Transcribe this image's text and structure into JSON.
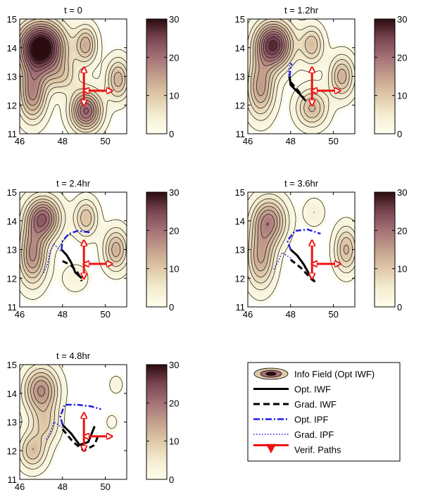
{
  "chart_data": {
    "type": "contour",
    "xlim": [
      46,
      51
    ],
    "ylim": [
      11,
      15
    ],
    "xticks": [
      "46",
      "48",
      "50"
    ],
    "yticks": [
      "11",
      "12",
      "13",
      "14",
      "15"
    ],
    "colorbar": {
      "range": [
        0,
        30
      ],
      "ticks": [
        "0",
        "10",
        "20",
        "30"
      ]
    },
    "panels": [
      {
        "title": "t = 0",
        "peaks": [
          {
            "x": 47.0,
            "y": 14.0,
            "amp": 34,
            "sx": 0.75,
            "sy": 0.62
          },
          {
            "x": 46.6,
            "y": 12.4,
            "amp": 17,
            "sx": 0.45,
            "sy": 0.65
          },
          {
            "x": 49.1,
            "y": 11.8,
            "amp": 22,
            "sx": 0.5,
            "sy": 0.48
          },
          {
            "x": 49.1,
            "y": 14.1,
            "amp": 13,
            "sx": 0.35,
            "sy": 0.45
          },
          {
            "x": 50.6,
            "y": 12.9,
            "amp": 13,
            "sx": 0.38,
            "sy": 0.5
          },
          {
            "x": 48.0,
            "y": 13.0,
            "amp": 7,
            "sx": 0.5,
            "sy": 0.4
          }
        ],
        "opt_iwf": [],
        "grad_iwf": [],
        "opt_ipf": [],
        "grad_ipf": []
      },
      {
        "title": "t = 1.2hr",
        "peaks": [
          {
            "x": 47.2,
            "y": 14.1,
            "amp": 27,
            "sx": 0.6,
            "sy": 0.55
          },
          {
            "x": 46.6,
            "y": 12.6,
            "amp": 15,
            "sx": 0.45,
            "sy": 0.7
          },
          {
            "x": 49.0,
            "y": 11.9,
            "amp": 12,
            "sx": 0.5,
            "sy": 0.45
          },
          {
            "x": 49.0,
            "y": 14.1,
            "amp": 11,
            "sx": 0.38,
            "sy": 0.45
          },
          {
            "x": 50.4,
            "y": 13.0,
            "amp": 13,
            "sx": 0.4,
            "sy": 0.5
          }
        ],
        "opt_iwf": [
          [
            47.95,
            13.0
          ],
          [
            48.0,
            12.7
          ],
          [
            48.4,
            12.4
          ],
          [
            48.7,
            12.15
          ]
        ],
        "grad_iwf": [
          [
            48.0,
            12.8
          ],
          [
            48.3,
            12.55
          ],
          [
            48.6,
            12.25
          ]
        ],
        "opt_ipf": [
          [
            47.95,
            13.0
          ],
          [
            48.0,
            13.3
          ],
          [
            48.05,
            13.45
          ]
        ],
        "grad_ipf": [
          [
            47.9,
            12.95
          ],
          [
            47.92,
            13.25
          ],
          [
            48.0,
            13.5
          ]
        ]
      },
      {
        "title": "t = 2.4hr",
        "peaks": [
          {
            "x": 47.1,
            "y": 14.1,
            "amp": 21,
            "sx": 0.55,
            "sy": 0.5
          },
          {
            "x": 46.6,
            "y": 12.8,
            "amp": 17,
            "sx": 0.45,
            "sy": 0.7
          },
          {
            "x": 49.1,
            "y": 14.1,
            "amp": 11,
            "sx": 0.38,
            "sy": 0.45
          },
          {
            "x": 50.5,
            "y": 13.0,
            "amp": 13,
            "sx": 0.4,
            "sy": 0.5
          },
          {
            "x": 48.6,
            "y": 12.0,
            "amp": 3,
            "sx": 0.5,
            "sy": 0.4
          }
        ],
        "opt_iwf": [
          [
            47.95,
            13.0
          ],
          [
            48.2,
            12.8
          ],
          [
            48.4,
            12.55
          ],
          [
            48.6,
            12.2
          ],
          [
            48.9,
            12.0
          ]
        ],
        "grad_iwf": [
          [
            48.0,
            12.6
          ],
          [
            48.4,
            12.45
          ],
          [
            48.7,
            12.2
          ],
          [
            48.9,
            11.9
          ]
        ],
        "opt_ipf": [
          [
            47.95,
            13.0
          ],
          [
            48.0,
            13.3
          ],
          [
            48.3,
            13.55
          ],
          [
            48.7,
            13.65
          ],
          [
            49.3,
            13.6
          ]
        ],
        "grad_ipf": [
          [
            47.9,
            12.95
          ],
          [
            47.6,
            13.2
          ],
          [
            47.4,
            12.9
          ],
          [
            47.3,
            12.5
          ],
          [
            47.1,
            12.15
          ]
        ]
      },
      {
        "title": "t = 3.6hr",
        "peaks": [
          {
            "x": 47.0,
            "y": 14.0,
            "amp": 17,
            "sx": 0.55,
            "sy": 0.55
          },
          {
            "x": 46.6,
            "y": 12.7,
            "amp": 14,
            "sx": 0.45,
            "sy": 0.7
          },
          {
            "x": 50.6,
            "y": 13.0,
            "amp": 12,
            "sx": 0.38,
            "sy": 0.55
          },
          {
            "x": 49.1,
            "y": 14.3,
            "amp": 4,
            "sx": 0.35,
            "sy": 0.35
          }
        ],
        "opt_iwf": [
          [
            48.0,
            13.0
          ],
          [
            48.3,
            12.8
          ],
          [
            48.6,
            12.5
          ],
          [
            48.9,
            12.1
          ],
          [
            49.1,
            11.9
          ]
        ],
        "grad_iwf": [
          [
            48.0,
            12.65
          ],
          [
            48.5,
            12.35
          ],
          [
            49.0,
            11.95
          ],
          [
            49.2,
            11.85
          ]
        ],
        "opt_ipf": [
          [
            48.0,
            13.0
          ],
          [
            47.85,
            13.3
          ],
          [
            48.2,
            13.65
          ],
          [
            48.8,
            13.7
          ],
          [
            49.4,
            13.55
          ]
        ],
        "grad_ipf": [
          [
            48.0,
            12.7
          ],
          [
            47.6,
            12.9
          ],
          [
            47.4,
            12.55
          ],
          [
            47.2,
            12.3
          ]
        ]
      },
      {
        "title": "t = 4.8hr",
        "peaks": [
          {
            "x": 47.0,
            "y": 14.1,
            "amp": 17,
            "sx": 0.55,
            "sy": 0.55
          },
          {
            "x": 46.6,
            "y": 12.0,
            "amp": 11,
            "sx": 0.45,
            "sy": 0.45
          },
          {
            "x": 47.2,
            "y": 12.9,
            "amp": 8,
            "sx": 0.45,
            "sy": 0.45
          },
          {
            "x": 50.5,
            "y": 14.3,
            "amp": 3,
            "sx": 0.25,
            "sy": 0.25
          },
          {
            "x": 50.3,
            "y": 13.0,
            "amp": 2,
            "sx": 0.3,
            "sy": 0.3
          }
        ],
        "opt_iwf": [
          [
            48.0,
            12.9
          ],
          [
            48.4,
            12.6
          ],
          [
            48.8,
            12.2
          ],
          [
            49.2,
            12.3
          ],
          [
            49.5,
            12.85
          ]
        ],
        "grad_iwf": [
          [
            48.0,
            12.75
          ],
          [
            48.5,
            12.3
          ],
          [
            49.0,
            12.0
          ],
          [
            49.5,
            12.2
          ],
          [
            49.7,
            12.6
          ]
        ],
        "opt_ipf": [
          [
            48.0,
            12.9
          ],
          [
            47.9,
            13.2
          ],
          [
            48.1,
            13.6
          ],
          [
            48.7,
            13.6
          ],
          [
            49.3,
            13.55
          ],
          [
            49.8,
            13.45
          ]
        ],
        "grad_ipf": [
          [
            48.0,
            12.8
          ],
          [
            47.6,
            13.0
          ],
          [
            47.4,
            12.6
          ],
          [
            47.2,
            12.35
          ]
        ]
      }
    ],
    "verif_paths": [
      [
        [
          49.0,
          13.3
        ],
        [
          49.0,
          12.0
        ]
      ],
      [
        [
          49.0,
          12.5
        ],
        [
          50.3,
          12.5
        ]
      ]
    ],
    "legend": [
      {
        "label": "Info Field (Opt IWF)",
        "style": "field"
      },
      {
        "label": "Opt. IWF",
        "style": "solid",
        "color": "#000000"
      },
      {
        "label": "Grad. IWF",
        "style": "dashed",
        "color": "#000000"
      },
      {
        "label": "Opt. IPF",
        "style": "dashdot",
        "color": "#1f1fe0"
      },
      {
        "label": "Grad. IPF",
        "style": "dotted",
        "color": "#1f1fe0"
      },
      {
        "label": "Verif. Paths",
        "style": "arrow",
        "color": "#ee1111"
      }
    ],
    "colors": {
      "colormap": [
        "#ffffee",
        "#f3ecd0",
        "#dfc9a8",
        "#c39f8c",
        "#a47176",
        "#7a4552",
        "#2b0b0f"
      ],
      "verif": "#ee1111",
      "ipf": "#1f1fe0"
    }
  }
}
